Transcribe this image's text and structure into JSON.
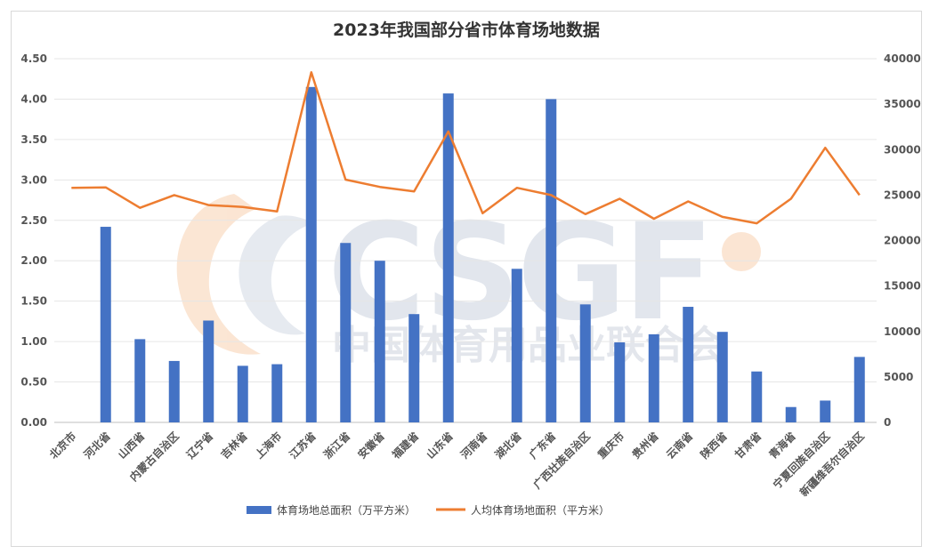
{
  "chart_data": {
    "type": "bar",
    "title": "2023年我国部分省市体育场地数据",
    "categories": [
      "北京市",
      "河北省",
      "山西省",
      "内蒙古自治区",
      "辽宁省",
      "吉林省",
      "上海市",
      "江苏省",
      "浙江省",
      "安徽省",
      "福建省",
      "山东省",
      "河南省",
      "湖北省",
      "广东省",
      "广西壮族自治区",
      "重庆市",
      "贵州省",
      "云南省",
      "陕西省",
      "甘肃省",
      "青海省",
      "宁夏回族自治区",
      "新疆维吾尔自治区"
    ],
    "series": [
      {
        "name": "体育场地总面积（万平方米）",
        "type": "bar",
        "axis": "left",
        "color": "#4472c4",
        "values": [
          0,
          2.42,
          1.03,
          0.76,
          1.26,
          0.7,
          0.72,
          4.15,
          2.22,
          2.0,
          1.34,
          4.07,
          0,
          1.9,
          4.0,
          1.46,
          0.99,
          1.09,
          1.43,
          1.12,
          0.63,
          0.19,
          0.27,
          0.81
        ]
      },
      {
        "name": "人均体育场地面积（平方米）",
        "type": "line",
        "axis": "right",
        "color": "#ed7d31",
        "values": [
          25800,
          25850,
          23600,
          25000,
          23900,
          23700,
          23200,
          38500,
          26700,
          25900,
          25400,
          32000,
          23000,
          25800,
          25000,
          22900,
          24600,
          22400,
          24300,
          22600,
          21900,
          24600,
          30200,
          25000
        ]
      }
    ],
    "y_left": {
      "ylim": [
        0,
        4.5
      ],
      "ticks": [
        "0.00",
        "0.50",
        "1.00",
        "1.50",
        "2.00",
        "2.50",
        "3.00",
        "3.50",
        "4.00",
        "4.50"
      ]
    },
    "y_right": {
      "ylim": [
        0,
        40000
      ],
      "ticks": [
        "0",
        "5000",
        "10000",
        "15000",
        "20000",
        "25000",
        "30000",
        "35000",
        "40000"
      ]
    },
    "grid": true,
    "legend_position": "bottom",
    "watermark": {
      "logo_text": "CSGF",
      "org_text": "中国体育用品业联合会"
    }
  }
}
